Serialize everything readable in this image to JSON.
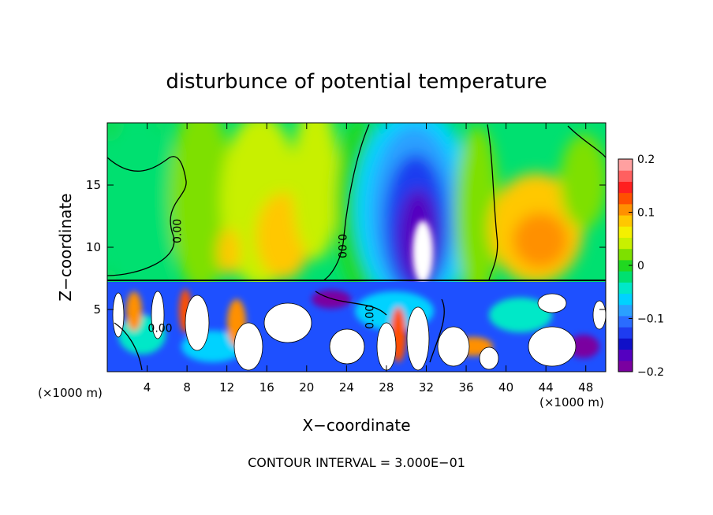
{
  "chart_data": {
    "type": "heatmap",
    "title": "disturbunce of potential temperature",
    "xlabel": "X−coordinate",
    "ylabel": "Z−coordinate",
    "x_unit_label_left": "(×1000 m)",
    "x_unit_label_right": "(×1000 m)",
    "xlim": [
      0,
      50
    ],
    "ylim": [
      0,
      20
    ],
    "xticks": [
      4,
      8,
      12,
      16,
      20,
      24,
      28,
      32,
      36,
      40,
      44,
      48
    ],
    "yticks": [
      5,
      10,
      15
    ],
    "contour_labels": [
      {
        "text": "0.00",
        "x": 7.4,
        "y": 11.3,
        "rotate": -90
      },
      {
        "text": "0.00",
        "x": 23.2,
        "y": 10.1,
        "rotate": 90
      },
      {
        "text": "0.00",
        "x": 26.7,
        "y": 4.4,
        "rotate": -90
      },
      {
        "text": "0.00",
        "x": 5.3,
        "y": 3.2,
        "rotate": 0
      }
    ],
    "colorbar": {
      "min": -0.2,
      "max": 0.2,
      "ticks": [
        "0.2",
        "0.1",
        "0",
        "−0.1",
        "−0.2"
      ],
      "colors": [
        "#7a00a0",
        "#5400c0",
        "#1010c8",
        "#1e3cf0",
        "#2a6cff",
        "#2aa0ff",
        "#00d2ff",
        "#00e8c8",
        "#00e070",
        "#20d820",
        "#7ee000",
        "#c8f000",
        "#f4f000",
        "#ffc800",
        "#ff9000",
        "#ff5000",
        "#ff2020",
        "#ff6060",
        "#ffa0a0"
      ]
    },
    "footer": "CONTOUR INTERVAL = 3.000E−01"
  },
  "colors": {
    "background": "#ffffff",
    "stable_layer_field": "#00e070",
    "turbulent_layer_field": "#1e50ff",
    "warm_anomaly": "#ff9000",
    "cold_anomaly": "#1010c8"
  }
}
